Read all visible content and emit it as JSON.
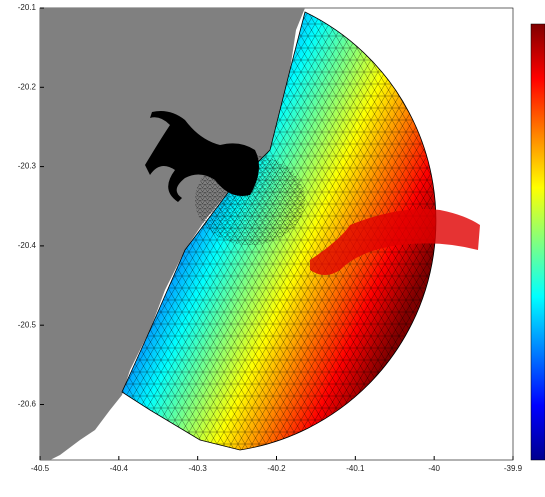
{
  "chart_data": {
    "type": "map",
    "xlim": [
      -40.5,
      -39.9
    ],
    "xticks": [
      -40.5,
      -40.4,
      -40.3,
      -40.2,
      -40.1,
      -40,
      -39.9
    ],
    "ylim": [
      -20.67,
      -20.1
    ],
    "yticks": [
      -20.1,
      -20.2,
      -20.3,
      -20.4,
      -20.5,
      -20.6
    ],
    "colormap": [
      "#00008f",
      "#0000ff",
      "#0080ff",
      "#00ffff",
      "#80ff80",
      "#ffff00",
      "#ff8000",
      "#ff0000",
      "#800000"
    ],
    "land_color": "#808080"
  }
}
